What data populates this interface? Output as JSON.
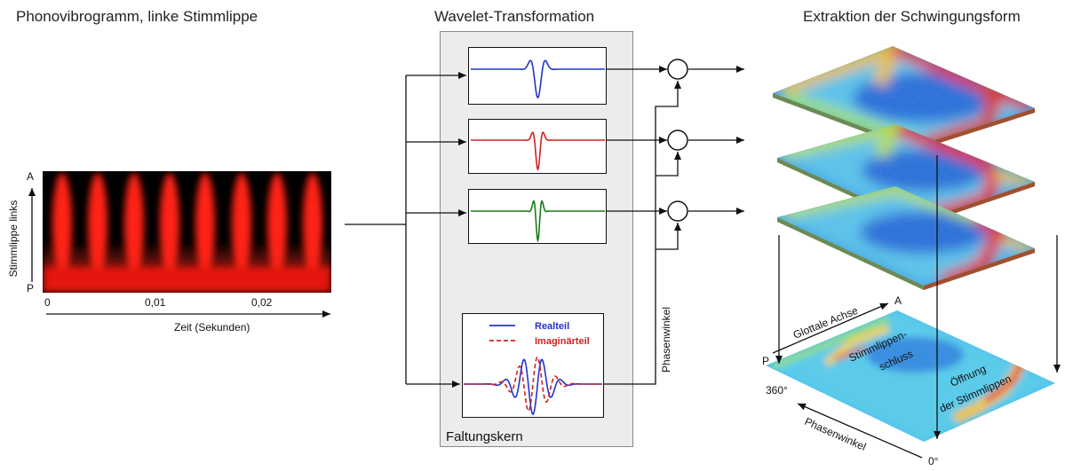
{
  "titles": {
    "left": "Phonovibrogramm, linke Stimmlippe",
    "middle": "Wavelet-Transformation",
    "right": "Extraktion der Schwingungsform"
  },
  "kymogram": {
    "y_axis_label": "Stimmlippe links",
    "y_top": "A",
    "y_bottom": "P",
    "x_ticks": [
      "0",
      "0,01",
      "0,02"
    ],
    "x_axis_label": "Zeit (Sekunden)"
  },
  "wavelets": {
    "colors": [
      "#2233cc",
      "#d42020",
      "#1a7a1a"
    ],
    "legend_real": "Realteil",
    "legend_imag": "Imaginärteil",
    "kernel_label": "Faltungskern",
    "phase_label": "Phasenwinkel"
  },
  "surface": {
    "axis_glottal": "Glottale Achse",
    "axis_a": "A",
    "axis_p": "P",
    "angle_360": "360°",
    "angle_0": "0°",
    "axis_phase": "Phasenwinkel",
    "closure_label_1": "Stimmlippen-",
    "closure_label_2": "schluss",
    "opening_label_1": "Öffnung",
    "opening_label_2": "der Stimmlippen"
  }
}
